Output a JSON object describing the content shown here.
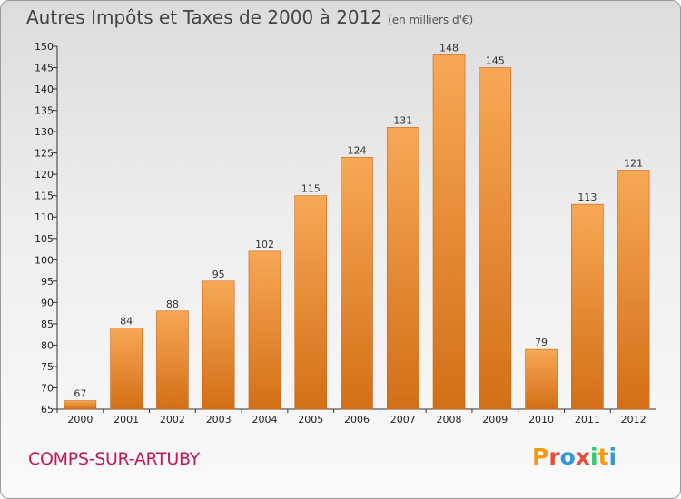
{
  "header": {
    "title": "Autres Impôts et Taxes de 2000 à 2012",
    "unit": "(en milliers d'€)"
  },
  "footer": {
    "commune": "COMPS-SUR-ARTUBY",
    "logo_letters": [
      "P",
      "r",
      "o",
      "x",
      "i",
      "t",
      "i"
    ],
    "logo_colors": [
      "#f39c12",
      "#e74c3c",
      "#3498db",
      "#e74c3c",
      "#2ecc71",
      "#f39c12",
      "#3498db"
    ]
  },
  "chart_data": {
    "type": "bar",
    "categories": [
      "2000",
      "2001",
      "2002",
      "2003",
      "2004",
      "2005",
      "2006",
      "2007",
      "2008",
      "2009",
      "2010",
      "2011",
      "2012"
    ],
    "values": [
      67,
      84,
      88,
      95,
      102,
      115,
      124,
      131,
      148,
      145,
      79,
      113,
      121
    ],
    "ylim": [
      65,
      150
    ],
    "yticks": [
      65,
      70,
      75,
      80,
      85,
      90,
      95,
      100,
      105,
      110,
      115,
      120,
      125,
      130,
      135,
      140,
      145,
      150
    ],
    "grid": false,
    "bar_color": "#f0943a",
    "value_labels": true
  }
}
